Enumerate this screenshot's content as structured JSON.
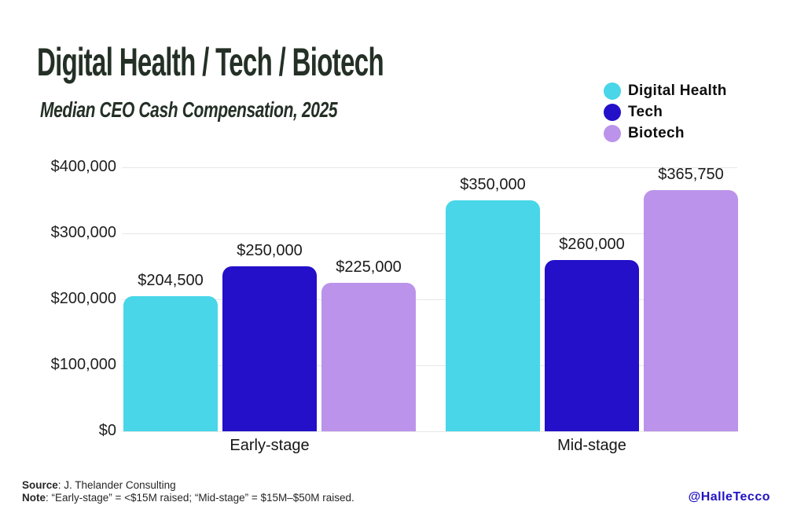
{
  "title": "Digital Health / Tech / Biotech",
  "subtitle": "Median CEO Cash Compensation, 2025",
  "legend": [
    {
      "label": "Digital Health",
      "color": "#48d6e8"
    },
    {
      "label": "Tech",
      "color": "#2310c8"
    },
    {
      "label": "Biotech",
      "color": "#bb93eb"
    }
  ],
  "footer": {
    "source_label": "Source",
    "source_text": ": J. Thelander Consulting",
    "note_label": "Note",
    "note_text": ": “Early-stage” = <$15M raised; “Mid-stage” = $15M–$50M raised.",
    "handle": "@HalleTecco"
  },
  "chart_data": {
    "type": "bar",
    "title": "Digital Health / Tech / Biotech",
    "subtitle": "Median CEO Cash Compensation, 2025",
    "categories": [
      "Early-stage",
      "Mid-stage"
    ],
    "series": [
      {
        "name": "Digital Health",
        "color": "#48d6e8",
        "values": [
          204500,
          350000
        ]
      },
      {
        "name": "Tech",
        "color": "#2310c8",
        "values": [
          250000,
          260000
        ]
      },
      {
        "name": "Biotech",
        "color": "#bb93eb",
        "values": [
          225000,
          365750
        ]
      }
    ],
    "value_labels": [
      [
        "$204,500",
        "$250,000",
        "$225,000"
      ],
      [
        "$350,000",
        "$260,000",
        "$365,750"
      ]
    ],
    "y_ticks": [
      {
        "value": 0,
        "label": "$0"
      },
      {
        "value": 100000,
        "label": "$100,000"
      },
      {
        "value": 200000,
        "label": "$200,000"
      },
      {
        "value": 300000,
        "label": "$300,000"
      },
      {
        "value": 400000,
        "label": "$400,000"
      }
    ],
    "ylim": [
      0,
      400000
    ],
    "grid": true,
    "legend_position": "top-right"
  }
}
